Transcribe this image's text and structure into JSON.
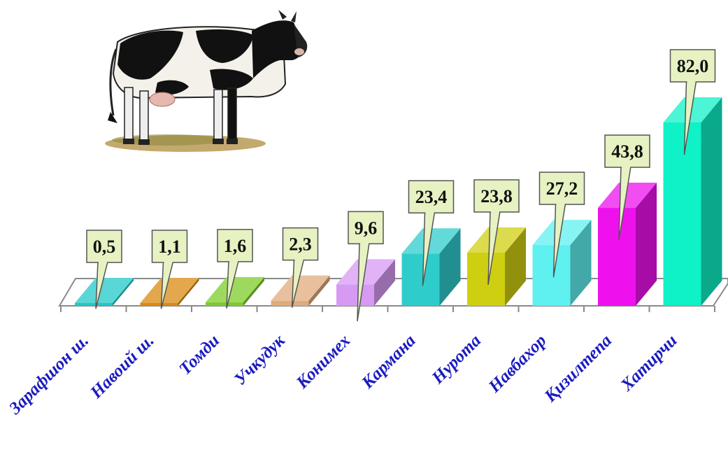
{
  "chart_data": {
    "type": "bar",
    "categories": [
      "Зарафшон ш.",
      "Навоий ш.",
      "Томди",
      "Учкудук",
      "Конимех",
      "Кармана",
      "Нурота",
      "Навбахор",
      "Қизилтепа",
      "Хатирчи"
    ],
    "values": [
      0.5,
      1.1,
      1.6,
      2.3,
      9.6,
      23.4,
      23.8,
      27.2,
      43.8,
      82.0
    ],
    "value_labels": [
      "0,5",
      "1,1",
      "1,6",
      "2,3",
      "9,6",
      "23,4",
      "23,8",
      "27,2",
      "43,8",
      "82,0"
    ],
    "ylim": [
      0,
      82
    ],
    "grid": false,
    "legend": "none",
    "bar_colors": [
      "#22c8c8",
      "#d98a10",
      "#7dcc2a",
      "#e0ab7c",
      "#d79af3",
      "#2fcccc",
      "#cfcf12",
      "#5ff0f0",
      "#ee11ee",
      "#0ff2c8"
    ],
    "callout_color": "#e6f2c2",
    "category_label_color": "#1b1bbf",
    "decoration": "cow-illustration"
  }
}
